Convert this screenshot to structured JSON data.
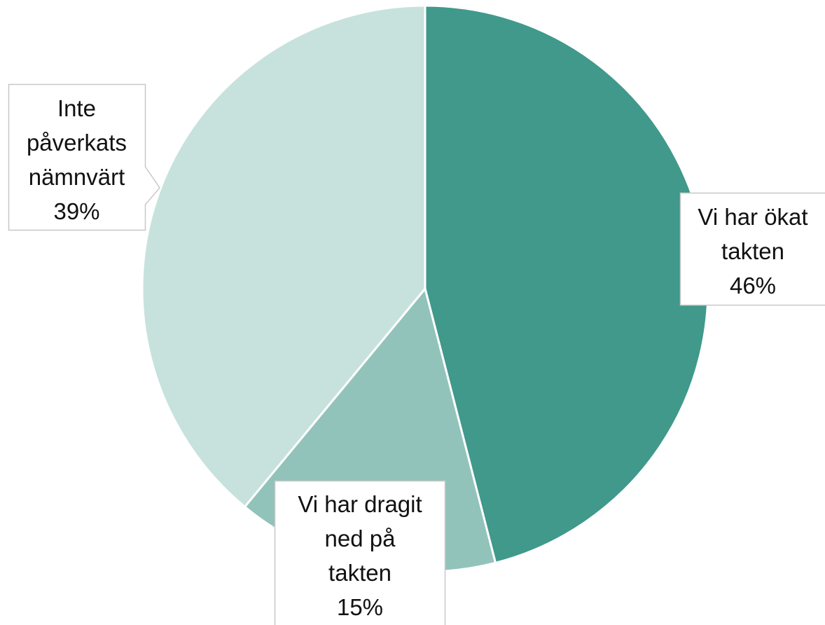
{
  "chart_data": {
    "type": "pie",
    "categories": [
      "Vi har ökat\ntakten",
      "Vi har dragit\nned på\ntakten",
      "Inte\npåverkats\nnämnvärt"
    ],
    "values": [
      46,
      15,
      39
    ],
    "value_labels": [
      "46%",
      "15%",
      "39%"
    ],
    "colors": [
      "#40998b",
      "#92c3bb",
      "#c7e2dd"
    ]
  }
}
